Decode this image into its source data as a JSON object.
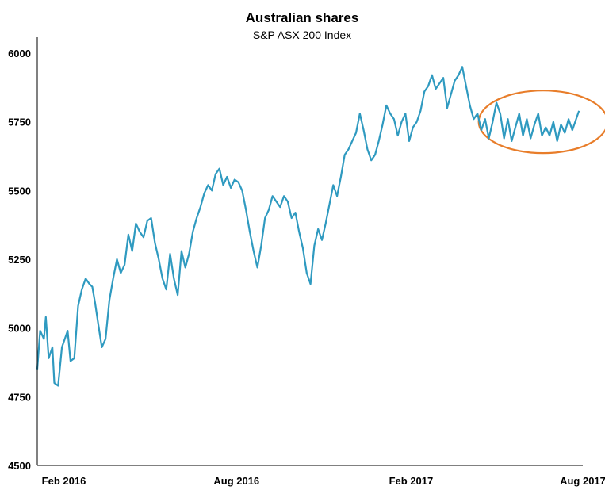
{
  "chart_data": {
    "type": "line",
    "title": "Australian shares",
    "subtitle": "S&P ASX 200 Index",
    "xlabel": "",
    "ylabel": "",
    "ylim": [
      4500,
      6000
    ],
    "xlim": [
      "2016-01-04",
      "2017-08-01"
    ],
    "yticks": [
      "6000",
      "5750",
      "5500",
      "5250",
      "5000",
      "4750",
      "4500"
    ],
    "xticks": [
      {
        "label": "Feb 2016",
        "date": "2016-02-01"
      },
      {
        "label": "Aug 2016",
        "date": "2016-08-01"
      },
      {
        "label": "Feb 2017",
        "date": "2017-02-01"
      },
      {
        "label": "Aug 2017",
        "date": "2017-08-01"
      }
    ],
    "grid": false,
    "colors": {
      "series": "#2f9ac0",
      "highlight": "#e87d2a",
      "axis": "#000000"
    },
    "highlight": {
      "shape": "ellipse",
      "from": "2017-05-10",
      "to": "2017-07-28",
      "ylim": [
        5665,
        5835
      ]
    },
    "series": [
      {
        "points": [
          [
            "2016-01-04",
            4850
          ],
          [
            "2016-01-07",
            4990
          ],
          [
            "2016-01-11",
            4960
          ],
          [
            "2016-01-13",
            5040
          ],
          [
            "2016-01-16",
            4890
          ],
          [
            "2016-01-20",
            4930
          ],
          [
            "2016-01-22",
            4800
          ],
          [
            "2016-01-26",
            4790
          ],
          [
            "2016-01-30",
            4930
          ],
          [
            "2016-02-03",
            4970
          ],
          [
            "2016-02-05",
            4990
          ],
          [
            "2016-02-08",
            4880
          ],
          [
            "2016-02-12",
            4890
          ],
          [
            "2016-02-16",
            5080
          ],
          [
            "2016-02-20",
            5140
          ],
          [
            "2016-02-24",
            5180
          ],
          [
            "2016-02-28",
            5160
          ],
          [
            "2016-03-02",
            5150
          ],
          [
            "2016-03-05",
            5090
          ],
          [
            "2016-03-08",
            5020
          ],
          [
            "2016-03-12",
            4930
          ],
          [
            "2016-03-16",
            4960
          ],
          [
            "2016-03-20",
            5100
          ],
          [
            "2016-03-24",
            5180
          ],
          [
            "2016-03-28",
            5250
          ],
          [
            "2016-04-01",
            5200
          ],
          [
            "2016-04-05",
            5230
          ],
          [
            "2016-04-09",
            5340
          ],
          [
            "2016-04-13",
            5280
          ],
          [
            "2016-04-17",
            5380
          ],
          [
            "2016-04-21",
            5350
          ],
          [
            "2016-04-25",
            5330
          ],
          [
            "2016-04-29",
            5390
          ],
          [
            "2016-05-03",
            5400
          ],
          [
            "2016-05-07",
            5310
          ],
          [
            "2016-05-11",
            5250
          ],
          [
            "2016-05-15",
            5180
          ],
          [
            "2016-05-19",
            5140
          ],
          [
            "2016-05-23",
            5270
          ],
          [
            "2016-05-27",
            5180
          ],
          [
            "2016-05-31",
            5120
          ],
          [
            "2016-06-04",
            5280
          ],
          [
            "2016-06-08",
            5220
          ],
          [
            "2016-06-12",
            5270
          ],
          [
            "2016-06-16",
            5350
          ],
          [
            "2016-06-20",
            5400
          ],
          [
            "2016-06-24",
            5440
          ],
          [
            "2016-06-28",
            5490
          ],
          [
            "2016-07-02",
            5520
          ],
          [
            "2016-07-06",
            5500
          ],
          [
            "2016-07-10",
            5560
          ],
          [
            "2016-07-14",
            5580
          ],
          [
            "2016-07-18",
            5520
          ],
          [
            "2016-07-22",
            5550
          ],
          [
            "2016-07-26",
            5510
          ],
          [
            "2016-07-30",
            5540
          ],
          [
            "2016-08-03",
            5530
          ],
          [
            "2016-08-07",
            5500
          ],
          [
            "2016-08-11",
            5430
          ],
          [
            "2016-08-15",
            5350
          ],
          [
            "2016-08-19",
            5280
          ],
          [
            "2016-08-23",
            5220
          ],
          [
            "2016-08-27",
            5300
          ],
          [
            "2016-08-31",
            5400
          ],
          [
            "2016-09-04",
            5430
          ],
          [
            "2016-09-08",
            5480
          ],
          [
            "2016-09-12",
            5460
          ],
          [
            "2016-09-16",
            5440
          ],
          [
            "2016-09-20",
            5480
          ],
          [
            "2016-09-24",
            5460
          ],
          [
            "2016-09-28",
            5400
          ],
          [
            "2016-10-02",
            5420
          ],
          [
            "2016-10-06",
            5350
          ],
          [
            "2016-10-10",
            5290
          ],
          [
            "2016-10-14",
            5200
          ],
          [
            "2016-10-18",
            5160
          ],
          [
            "2016-10-22",
            5300
          ],
          [
            "2016-10-26",
            5360
          ],
          [
            "2016-10-30",
            5320
          ],
          [
            "2016-11-03",
            5380
          ],
          [
            "2016-11-07",
            5450
          ],
          [
            "2016-11-11",
            5520
          ],
          [
            "2016-11-15",
            5480
          ],
          [
            "2016-11-19",
            5550
          ],
          [
            "2016-11-23",
            5630
          ],
          [
            "2016-11-27",
            5650
          ],
          [
            "2016-12-01",
            5680
          ],
          [
            "2016-12-05",
            5710
          ],
          [
            "2016-12-09",
            5780
          ],
          [
            "2016-12-13",
            5720
          ],
          [
            "2016-12-17",
            5650
          ],
          [
            "2016-12-21",
            5610
          ],
          [
            "2016-12-25",
            5630
          ],
          [
            "2016-12-29",
            5680
          ],
          [
            "2017-01-02",
            5740
          ],
          [
            "2017-01-06",
            5810
          ],
          [
            "2017-01-10",
            5780
          ],
          [
            "2017-01-14",
            5760
          ],
          [
            "2017-01-18",
            5700
          ],
          [
            "2017-01-22",
            5750
          ],
          [
            "2017-01-26",
            5780
          ],
          [
            "2017-01-30",
            5680
          ],
          [
            "2017-02-03",
            5730
          ],
          [
            "2017-02-07",
            5750
          ],
          [
            "2017-02-11",
            5790
          ],
          [
            "2017-02-15",
            5860
          ],
          [
            "2017-02-19",
            5880
          ],
          [
            "2017-02-23",
            5920
          ],
          [
            "2017-02-27",
            5870
          ],
          [
            "2017-03-03",
            5890
          ],
          [
            "2017-03-07",
            5910
          ],
          [
            "2017-03-11",
            5800
          ],
          [
            "2017-03-15",
            5850
          ],
          [
            "2017-03-19",
            5900
          ],
          [
            "2017-03-23",
            5920
          ],
          [
            "2017-03-27",
            5950
          ],
          [
            "2017-03-31",
            5880
          ],
          [
            "2017-04-04",
            5810
          ],
          [
            "2017-04-08",
            5760
          ],
          [
            "2017-04-12",
            5780
          ],
          [
            "2017-04-16",
            5720
          ],
          [
            "2017-04-20",
            5760
          ],
          [
            "2017-04-24",
            5690
          ],
          [
            "2017-04-28",
            5750
          ],
          [
            "2017-05-02",
            5820
          ],
          [
            "2017-05-06",
            5780
          ],
          [
            "2017-05-10",
            5690
          ],
          [
            "2017-05-14",
            5760
          ],
          [
            "2017-05-18",
            5680
          ],
          [
            "2017-05-22",
            5730
          ],
          [
            "2017-05-26",
            5780
          ],
          [
            "2017-05-30",
            5700
          ],
          [
            "2017-06-03",
            5760
          ],
          [
            "2017-06-07",
            5690
          ],
          [
            "2017-06-11",
            5740
          ],
          [
            "2017-06-15",
            5780
          ],
          [
            "2017-06-19",
            5700
          ],
          [
            "2017-06-23",
            5730
          ],
          [
            "2017-06-27",
            5700
          ],
          [
            "2017-07-01",
            5750
          ],
          [
            "2017-07-05",
            5680
          ],
          [
            "2017-07-09",
            5740
          ],
          [
            "2017-07-13",
            5710
          ],
          [
            "2017-07-17",
            5760
          ],
          [
            "2017-07-21",
            5720
          ],
          [
            "2017-07-25",
            5760
          ],
          [
            "2017-07-28",
            5790
          ]
        ]
      }
    ]
  }
}
